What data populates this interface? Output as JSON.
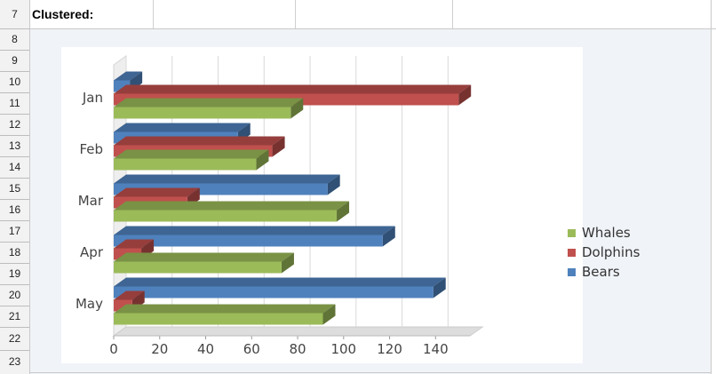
{
  "sheet": {
    "row_numbers": [
      "7",
      "8",
      "9",
      "10",
      "11",
      "12",
      "13",
      "14",
      "15",
      "16",
      "17",
      "18",
      "19",
      "20",
      "21",
      "22",
      "23"
    ],
    "title_cell": "Clustered:"
  },
  "colors": {
    "whales": "#9bbb59",
    "dolphins": "#c0504d",
    "bears": "#4f81bd"
  },
  "chart_data": {
    "type": "bar",
    "orientation": "horizontal",
    "style": "3d-clustered",
    "categories": [
      "Jan",
      "Feb",
      "Mar",
      "Apr",
      "May"
    ],
    "series": [
      {
        "name": "Whales",
        "values": [
          77,
          62,
          97,
          73,
          91
        ]
      },
      {
        "name": "Dolphins",
        "values": [
          150,
          69,
          32,
          12,
          8
        ]
      },
      {
        "name": "Bears",
        "values": [
          7,
          54,
          93,
          117,
          139
        ]
      }
    ],
    "xticks": [
      "0",
      "20",
      "40",
      "60",
      "80",
      "100",
      "120",
      "140"
    ],
    "xlim": [
      0,
      155
    ],
    "grid": true,
    "legend_position": "right"
  }
}
